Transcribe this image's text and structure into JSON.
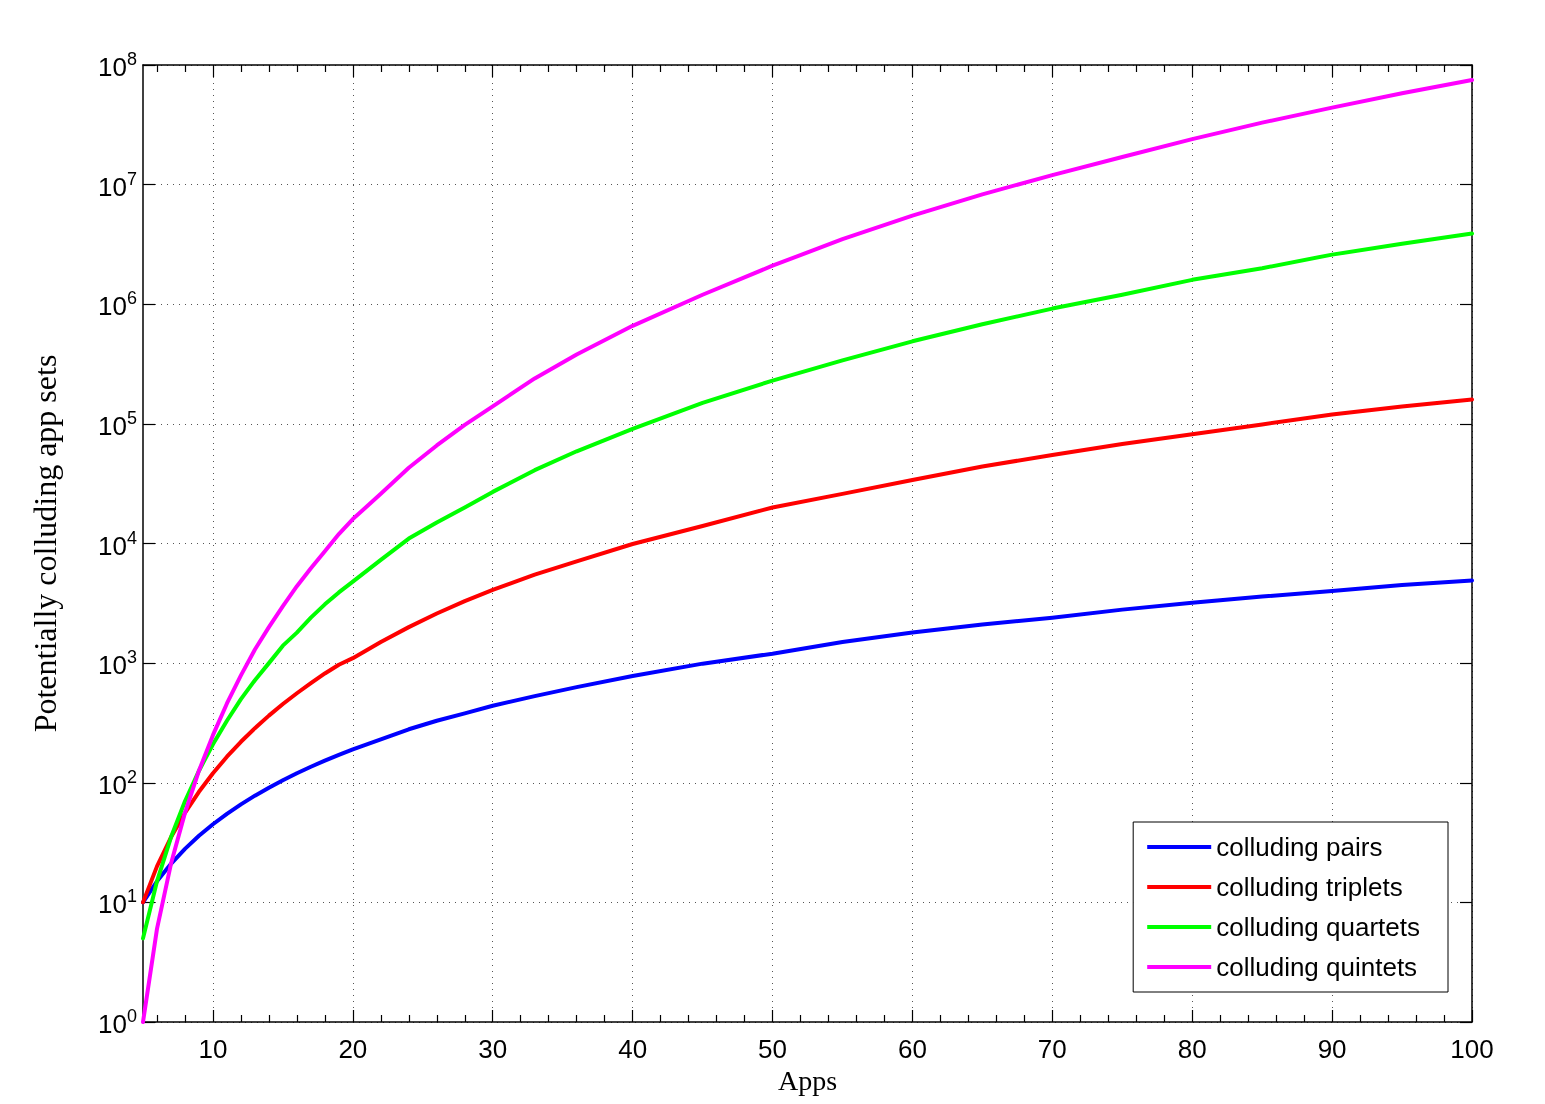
{
  "chart_data": {
    "type": "line",
    "xlabel": "Apps",
    "ylabel": "Potentially colluding app sets",
    "x": [
      5,
      6,
      7,
      8,
      9,
      10,
      11,
      12,
      13,
      14,
      15,
      16,
      17,
      18,
      19,
      20,
      22,
      24,
      26,
      28,
      30,
      33,
      36,
      40,
      45,
      50,
      55,
      60,
      65,
      70,
      75,
      80,
      85,
      90,
      95,
      100
    ],
    "series": [
      {
        "name": "colluding pairs",
        "color": "#0000ff",
        "values": [
          10,
          15,
          21,
          28,
          36,
          45,
          55,
          66,
          78,
          91,
          105,
          120,
          136,
          153,
          171,
          190,
          230,
          280,
          330,
          380,
          440,
          530,
          630,
          780,
          990,
          1200,
          1500,
          1800,
          2100,
          2400,
          2800,
          3200,
          3600,
          4000,
          4500,
          4900
        ]
      },
      {
        "name": "colluding triplets",
        "color": "#ff0000",
        "values": [
          10,
          20,
          35,
          56,
          84,
          120,
          165,
          220,
          286,
          364,
          455,
          560,
          680,
          820,
          970,
          1100,
          1500,
          2000,
          2600,
          3300,
          4100,
          5500,
          7100,
          9900,
          14000,
          20000,
          26000,
          34000,
          44000,
          55000,
          68000,
          82000,
          99000,
          120000,
          140000,
          160000
        ]
      },
      {
        "name": "colluding quartets",
        "color": "#00ff00",
        "values": [
          5,
          15,
          35,
          70,
          126,
          210,
          330,
          500,
          720,
          1000,
          1400,
          1800,
          2400,
          3100,
          3900,
          4800,
          7300,
          11000,
          15000,
          20000,
          27000,
          41000,
          59000,
          91000,
          150000,
          230000,
          340000,
          490000,
          680000,
          920000,
          1200000,
          1600000,
          2000000,
          2600000,
          3200000,
          3900000
        ]
      },
      {
        "name": "colluding quintets",
        "color": "#ff00ff",
        "values": [
          1,
          6,
          21,
          56,
          126,
          250,
          460,
          790,
          1300,
          2000,
          3000,
          4400,
          6200,
          8600,
          12000,
          16000,
          26000,
          43000,
          66000,
          98000,
          140000,
          240000,
          380000,
          660000,
          1200000,
          2100000,
          3500000,
          5500000,
          8300000,
          12000000,
          17000000,
          24000000,
          33000000,
          44000000,
          58000000,
          75000000
        ]
      }
    ],
    "xlim": [
      5,
      100
    ],
    "xticks": [
      {
        "value": 6,
        "label": null
      },
      {
        "value": 8,
        "label": null
      },
      10,
      {
        "value": 12,
        "label": null
      },
      {
        "value": 14,
        "label": null
      },
      {
        "value": 16,
        "label": null
      },
      {
        "value": 18,
        "label": null
      },
      20,
      {
        "value": 22,
        "label": null
      },
      {
        "value": 24,
        "label": null
      },
      {
        "value": 26,
        "label": null
      },
      {
        "value": 28,
        "label": null
      },
      30,
      {
        "value": 32,
        "label": null
      },
      {
        "value": 34,
        "label": null
      },
      {
        "value": 36,
        "label": null
      },
      {
        "value": 38,
        "label": null
      },
      40,
      {
        "value": 42,
        "label": null
      },
      {
        "value": 44,
        "label": null
      },
      {
        "value": 46,
        "label": null
      },
      {
        "value": 48,
        "label": null
      },
      50,
      {
        "value": 52,
        "label": null
      },
      {
        "value": 54,
        "label": null
      },
      {
        "value": 56,
        "label": null
      },
      {
        "value": 58,
        "label": null
      },
      60,
      {
        "value": 62,
        "label": null
      },
      {
        "value": 64,
        "label": null
      },
      {
        "value": 66,
        "label": null
      },
      {
        "value": 68,
        "label": null
      },
      70,
      {
        "value": 72,
        "label": null
      },
      {
        "value": 74,
        "label": null
      },
      {
        "value": 76,
        "label": null
      },
      {
        "value": 78,
        "label": null
      },
      80,
      {
        "value": 82,
        "label": null
      },
      {
        "value": 84,
        "label": null
      },
      {
        "value": 86,
        "label": null
      },
      {
        "value": 88,
        "label": null
      },
      90,
      {
        "value": 92,
        "label": null
      },
      {
        "value": 94,
        "label": null
      },
      {
        "value": 96,
        "label": null
      },
      {
        "value": 98,
        "label": null
      },
      100
    ],
    "ylim": [
      1,
      100000000
    ],
    "yticks": [
      {
        "value": 1,
        "label": "10$^{0}$"
      },
      {
        "value": 10,
        "label": "10$^{1}$"
      },
      {
        "value": 100,
        "label": "10$^{2}$"
      },
      {
        "value": 1000,
        "label": "10$^{3}$"
      },
      {
        "value": 10000,
        "label": "10$^{4}$"
      },
      {
        "value": 100000,
        "label": "10$^{5}$"
      },
      {
        "value": 1000000,
        "label": "10$^{6}$"
      },
      {
        "value": 10000000,
        "label": "10$^{7}$"
      },
      {
        "value": 100000000,
        "label": "10$^{8}$"
      }
    ],
    "log": true,
    "grid": true,
    "legend": "bottom right",
    "marker": "none",
    "line_style": "solid"
  }
}
